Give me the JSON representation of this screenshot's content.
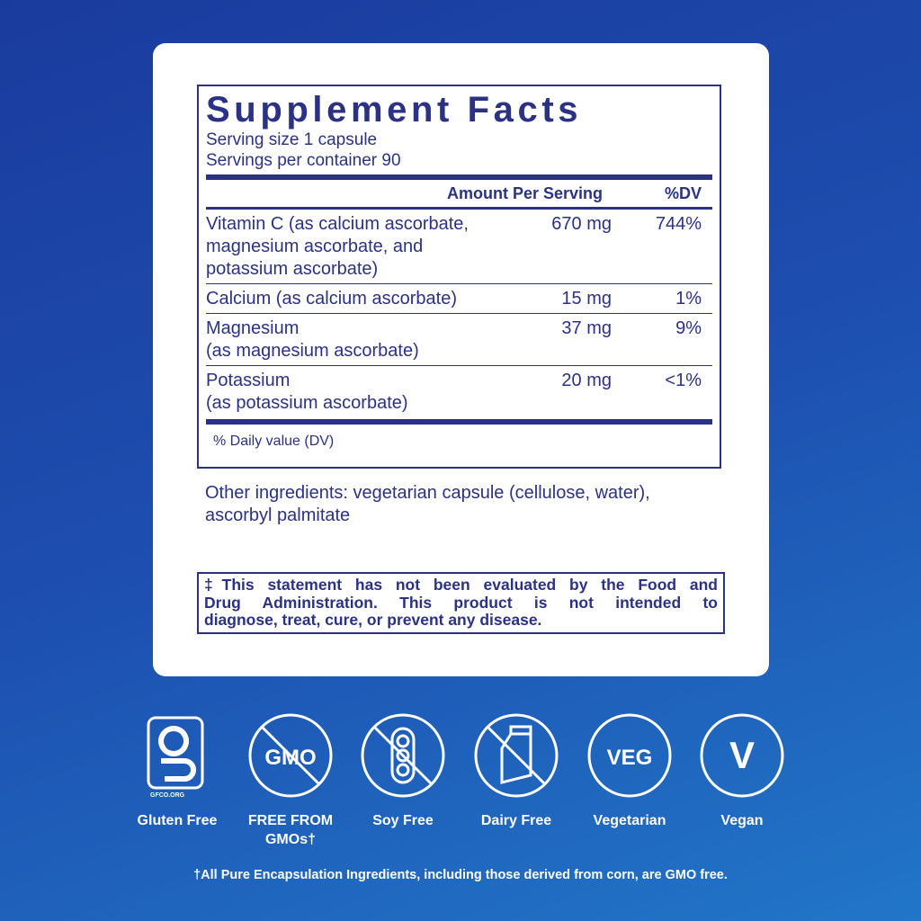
{
  "label": {
    "title": "Supplement Facts",
    "serving_size": "Serving size  1 capsule",
    "servings": "Servings per container  90",
    "header": {
      "amount": "Amount Per Serving",
      "dv": "%DV"
    },
    "rows": [
      {
        "name": [
          "Vitamin C (as calcium ascorbate,",
          "magnesium ascorbate, and",
          "potassium ascorbate)"
        ],
        "amount": "670 mg",
        "dv": "744%"
      },
      {
        "name": [
          "Calcium (as calcium ascorbate)"
        ],
        "amount": "15 mg",
        "dv": "1%"
      },
      {
        "name": [
          "Magnesium",
          "(as magnesium ascorbate)"
        ],
        "amount": "37 mg",
        "dv": "9%"
      },
      {
        "name": [
          "Potassium",
          "(as potassium ascorbate)"
        ],
        "amount": "20 mg",
        "dv": "<1%"
      }
    ],
    "footnote": "% Daily value (DV)"
  },
  "other_ingredients": [
    "Other ingredients: vegetarian capsule (cellulose, water),",
    "ascorbyl palmitate"
  ],
  "disclaimer": [
    "‡This statement has not been evaluated by the Food and",
    "Drug Administration. This product is not intended to",
    "diagnose, treat, cure, or prevent any disease."
  ],
  "badges": [
    {
      "icon": "GFCO.ORG",
      "label": [
        "Gluten Free"
      ]
    },
    {
      "icon": "GMO",
      "label": [
        "FREE FROM",
        "GMOs†"
      ]
    },
    {
      "icon": "",
      "label": [
        "Soy Free"
      ]
    },
    {
      "icon": "",
      "label": [
        "Dairy Free"
      ]
    },
    {
      "icon": "VEG",
      "label": [
        "Vegetarian"
      ]
    },
    {
      "icon": "V",
      "label": [
        "Vegan"
      ]
    }
  ],
  "footer": "†All Pure Encapsulation Ingredients, including those derived from corn, are GMO free."
}
